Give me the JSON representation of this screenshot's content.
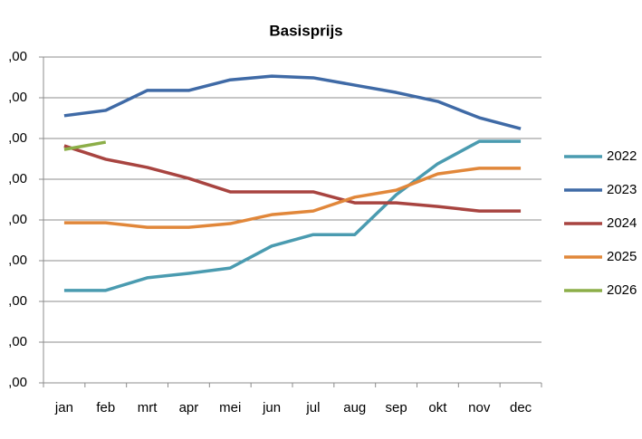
{
  "chart_data": {
    "type": "line",
    "title": "Basisprijs",
    "categories": [
      "jan",
      "feb",
      "mrt",
      "apr",
      "mei",
      "jun",
      "jul",
      "aug",
      "sep",
      "okt",
      "nov",
      "dec"
    ],
    "series": [
      {
        "name": "2022",
        "color": "#4a9bb0",
        "values": [
          2.27,
          2.27,
          2.58,
          2.69,
          2.82,
          3.36,
          3.64,
          3.64,
          4.62,
          5.38,
          5.93,
          5.93
        ]
      },
      {
        "name": "2023",
        "color": "#3f6aa6",
        "values": [
          6.56,
          6.69,
          7.18,
          7.18,
          7.44,
          7.53,
          7.49,
          7.31,
          7.13,
          6.91,
          6.51,
          6.24
        ]
      },
      {
        "name": "2024",
        "color": "#a84440",
        "values": [
          5.82,
          5.49,
          5.29,
          5.02,
          4.69,
          4.69,
          4.69,
          4.42,
          4.42,
          4.33,
          4.22,
          4.22
        ]
      },
      {
        "name": "2025",
        "color": "#e1873a",
        "values": [
          3.93,
          3.93,
          3.82,
          3.82,
          3.91,
          4.13,
          4.22,
          4.56,
          4.73,
          5.13,
          5.27,
          5.27
        ]
      },
      {
        "name": "2026",
        "color": "#8cae48",
        "values": [
          5.73,
          5.91,
          null,
          null,
          null,
          null,
          null,
          null,
          null,
          null,
          null,
          null
        ]
      }
    ],
    "ylim": [
      0,
      8
    ],
    "yticks": [
      {
        "value": 0,
        "label": ",00"
      },
      {
        "value": 1,
        "label": ",00"
      },
      {
        "value": 2,
        "label": ",00"
      },
      {
        "value": 3,
        "label": ",00"
      },
      {
        "value": 4,
        "label": ",00"
      },
      {
        "value": 5,
        "label": ",00"
      },
      {
        "value": 6,
        "label": ",00"
      },
      {
        "value": 7,
        "label": ",00"
      },
      {
        "value": 8,
        "label": ",00"
      }
    ],
    "grid": true,
    "legend": "right"
  }
}
